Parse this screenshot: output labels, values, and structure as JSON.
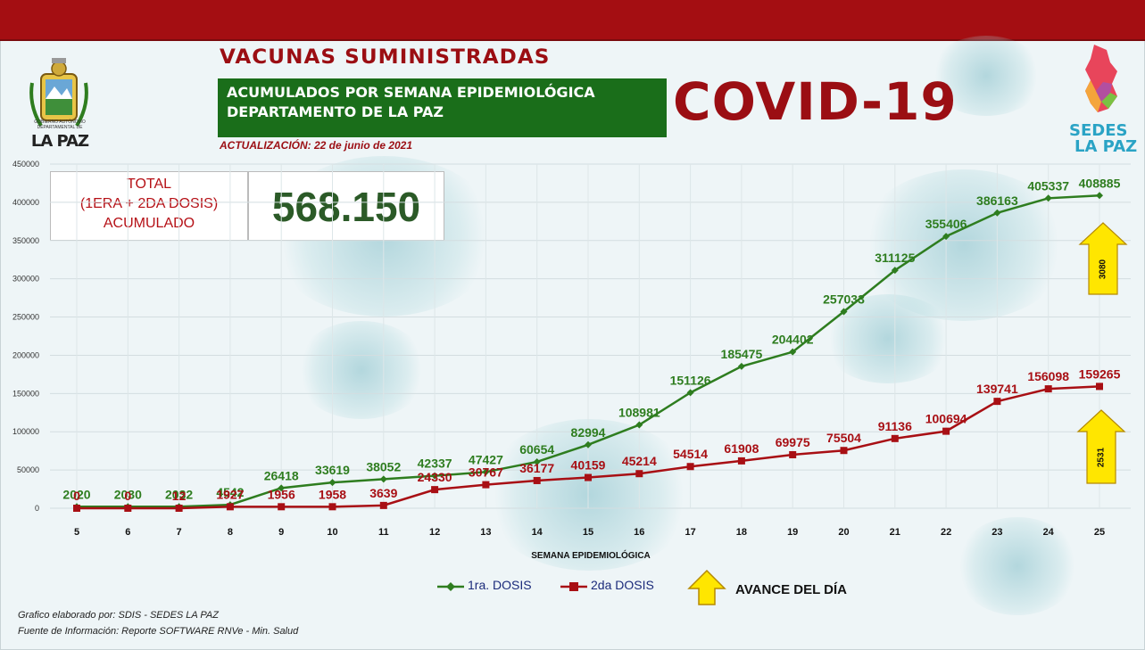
{
  "header": {
    "title": "VACUNAS SUMINISTRADAS",
    "subtitle_line1": "ACUMULADOS POR SEMANA EPIDEMIOLÓGICA",
    "subtitle_line2": "DEPARTAMENTO DE LA PAZ",
    "covid": "COVID-19",
    "update": "ACTUALIZACIÓN: 22 de junio de 2021"
  },
  "logo_left": {
    "caption": "GOBIERNO AUTÓNOMO DEPARTAMENTAL DE",
    "name": "LA PAZ"
  },
  "logo_right": {
    "line1": "SEDES",
    "line2": "LA PAZ"
  },
  "total": {
    "label_line1": "TOTAL",
    "label_line2": "(1ERA + 2DA DOSIS)",
    "label_line3": "ACUMULADO",
    "value": "568.150"
  },
  "avance": {
    "label": "AVANCE DEL DÍA",
    "first_dose_increase": "3080",
    "second_dose_increase": "2531"
  },
  "footer": {
    "line1": "Grafico elaborado por: SDIS - SEDES LA PAZ",
    "line2": "Fuente de Información: Reporte SOFTWARE RNVe - Min. Salud"
  },
  "colors": {
    "first_dose": "#2e7d1f",
    "second_dose": "#a80f14",
    "brand_red": "#9b0e13",
    "brand_green": "#1a6e1a",
    "arrow_yellow": "#ffe600"
  },
  "chart_data": {
    "type": "line",
    "xlabel": "SEMANA EPIDEMIOLÓGICA",
    "ylabel": "",
    "ylim": [
      0,
      450000
    ],
    "yticks": [
      "0",
      "50000",
      "100000",
      "150000",
      "200000",
      "250000",
      "300000",
      "350000",
      "400000",
      "450000"
    ],
    "categories": [
      "5",
      "6",
      "7",
      "8",
      "9",
      "10",
      "11",
      "12",
      "13",
      "14",
      "15",
      "16",
      "17",
      "18",
      "19",
      "20",
      "21",
      "22",
      "23",
      "24",
      "25"
    ],
    "grid": true,
    "legend": "bottom",
    "series": [
      {
        "name": "1ra. DOSIS",
        "marker": "diamond",
        "values": [
          2020,
          2030,
          2032,
          4542,
          26418,
          33619,
          38052,
          42337,
          47427,
          60654,
          82994,
          108981,
          151126,
          185475,
          204402,
          257033,
          311125,
          355406,
          386163,
          405337,
          408885
        ],
        "labels": [
          "2020",
          "2030",
          "2032",
          "4542",
          "26418",
          "33619",
          "38052",
          "42337",
          "47427",
          "60654",
          "82994",
          "108981",
          "151126",
          "185475",
          "204402",
          "257033",
          "311125",
          "355406",
          "386163",
          "405337",
          "408885"
        ]
      },
      {
        "name": "2da DOSIS",
        "marker": "square",
        "values": [
          0,
          0,
          12,
          1927,
          1956,
          1958,
          3639,
          24330,
          30767,
          36177,
          40159,
          45214,
          54514,
          61908,
          69975,
          75504,
          91136,
          100694,
          139741,
          156098,
          159265
        ],
        "labels": [
          "0",
          "0",
          "12",
          "1927",
          "1956",
          "1958",
          "3639",
          "24330",
          "30767",
          "36177",
          "40159",
          "45214",
          "54514",
          "61908",
          "69975",
          "75504",
          "91136",
          "100694",
          "139741",
          "156098",
          "159265"
        ]
      }
    ]
  }
}
